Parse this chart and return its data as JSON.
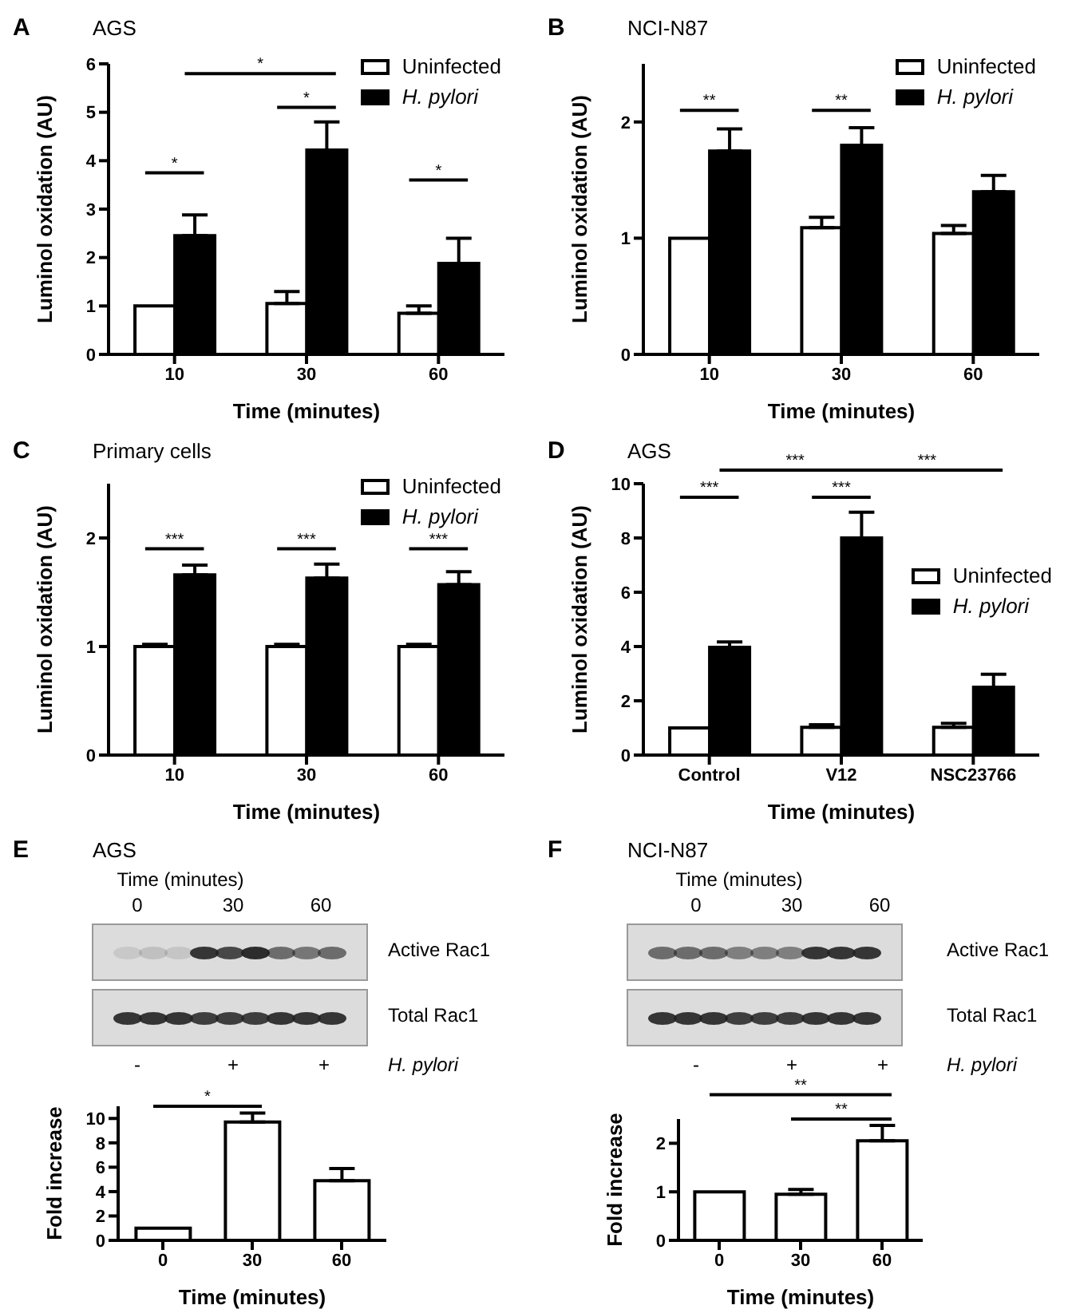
{
  "chart_data": [
    {
      "type": "bar",
      "title": "AGS",
      "xlabel": "Time (minutes)",
      "ylabel": "Luminol oxidation  (AU)",
      "categories": [
        "10",
        "30",
        "60"
      ],
      "series": [
        {
          "name": "Uninfected",
          "color": "#ffffff",
          "values": [
            1.0,
            1.05,
            0.85
          ],
          "errors": [
            null,
            [
              1.05,
              1.3
            ],
            [
              0.85,
              1.0
            ]
          ]
        },
        {
          "name": "H. pylori",
          "color": "#000000",
          "values": [
            2.45,
            4.22,
            1.88
          ],
          "errors": [
            [
              2.45,
              2.88
            ],
            [
              4.22,
              4.8
            ],
            [
              1.88,
              2.4
            ]
          ]
        }
      ],
      "ylim": [
        0,
        6
      ],
      "yticks": [
        0,
        1,
        2,
        3,
        4,
        5,
        6
      ],
      "legend": "top right",
      "annotations": [
        "A",
        "*",
        "*",
        "*",
        "*"
      ]
    },
    {
      "type": "bar",
      "title": "NCI-N87",
      "xlabel": "Time (minutes)",
      "ylabel": "Luminol oxidation  (AU)",
      "categories": [
        "10",
        "30",
        "60"
      ],
      "series": [
        {
          "name": "Uninfected",
          "color": "#ffffff",
          "values": [
            1.0,
            1.09,
            1.04
          ],
          "errors": [
            null,
            [
              1.09,
              1.18
            ],
            [
              1.04,
              1.11
            ]
          ]
        },
        {
          "name": "H. pylori",
          "color": "#000000",
          "values": [
            1.75,
            1.8,
            1.4
          ],
          "errors": [
            [
              1.75,
              1.94
            ],
            [
              1.8,
              1.95
            ],
            [
              1.4,
              1.54
            ]
          ]
        }
      ],
      "ylim": [
        0,
        2.5
      ],
      "yticks": [
        0,
        1,
        2
      ],
      "legend": "top right",
      "annotations": [
        "B",
        "**",
        "**"
      ]
    },
    {
      "type": "bar",
      "title": "Primary cells",
      "xlabel": "Time (minutes)",
      "ylabel": "Luminol oxidation  (AU)",
      "categories": [
        "10",
        "30",
        "60"
      ],
      "series": [
        {
          "name": "Uninfected",
          "color": "#ffffff",
          "values": [
            1.0,
            1.0,
            1.0
          ],
          "errors": [
            [
              1.0,
              1.02
            ],
            [
              1.0,
              1.02
            ],
            [
              1.0,
              1.02
            ]
          ]
        },
        {
          "name": "H. pylori",
          "color": "#000000",
          "values": [
            1.66,
            1.63,
            1.57
          ],
          "errors": [
            [
              1.66,
              1.75
            ],
            [
              1.63,
              1.76
            ],
            [
              1.57,
              1.69
            ]
          ]
        }
      ],
      "ylim": [
        0,
        2.5
      ],
      "yticks": [
        0,
        1,
        2
      ],
      "legend": "top right",
      "annotations": [
        "C",
        "***",
        "***",
        "***"
      ]
    },
    {
      "type": "bar",
      "title": "AGS",
      "xlabel": "Time (minutes)",
      "ylabel": "Luminol oxidation  (AU)",
      "categories": [
        "Control",
        "V12",
        "NSC23766"
      ],
      "series": [
        {
          "name": "Uninfected",
          "color": "#ffffff",
          "values": [
            1.0,
            1.02,
            1.02
          ],
          "errors": [
            null,
            [
              1.02,
              1.12
            ],
            [
              1.02,
              1.17
            ]
          ]
        },
        {
          "name": "H. pylori",
          "color": "#000000",
          "values": [
            3.97,
            8.0,
            2.5
          ],
          "errors": [
            [
              3.97,
              4.17
            ],
            [
              8.0,
              8.95
            ],
            [
              2.5,
              2.98
            ]
          ]
        }
      ],
      "ylim": [
        0,
        10
      ],
      "yticks": [
        0,
        2,
        4,
        6,
        8,
        10
      ],
      "legend": "right",
      "annotations": [
        "D",
        "***",
        "***",
        "***",
        "***"
      ]
    },
    {
      "type": "bar",
      "title": "AGS",
      "xlabel": "Time (minutes)",
      "ylabel": "Fold increase",
      "categories": [
        "0",
        "30",
        "60"
      ],
      "series": [
        {
          "color": "#ffffff",
          "values": [
            1.0,
            9.7,
            4.9
          ],
          "errors": [
            null,
            [
              9.7,
              10.45
            ],
            [
              4.9,
              5.9
            ]
          ]
        }
      ],
      "ylim": [
        0,
        11
      ],
      "yticks": [
        0,
        2,
        4,
        6,
        8,
        10
      ],
      "annotations": [
        "E",
        "*",
        "Time (minutes)",
        "0",
        "30",
        "60",
        "Active Rac1",
        "Total Rac1",
        "-",
        "+",
        "+",
        "H. pylori"
      ]
    },
    {
      "type": "bar",
      "title": "NCI-N87",
      "xlabel": "Time (minutes)",
      "ylabel": "Fold increase",
      "categories": [
        "0",
        "30",
        "60"
      ],
      "series": [
        {
          "color": "#ffffff",
          "values": [
            1.0,
            0.95,
            2.05
          ],
          "errors": [
            null,
            [
              0.95,
              1.05
            ],
            [
              2.05,
              2.37
            ]
          ]
        }
      ],
      "ylim": [
        0,
        2.5
      ],
      "yticks": [
        0,
        1,
        2
      ],
      "annotations": [
        "F",
        "**",
        "**",
        "Time (minutes)",
        "0",
        "30",
        "60",
        "Active Rac1",
        "Total Rac1",
        "-",
        "+",
        "+",
        "H. pylori"
      ]
    }
  ]
}
